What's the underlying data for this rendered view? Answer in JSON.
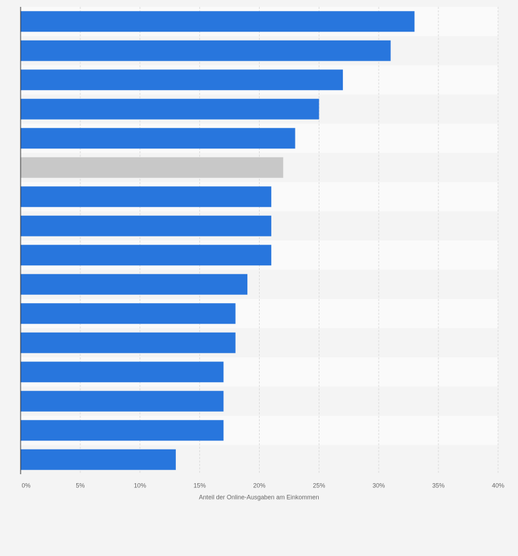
{
  "chart_data": {
    "type": "hbar",
    "categories": [
      null,
      null,
      null,
      null,
      null,
      null,
      null,
      null,
      null,
      null,
      null,
      null,
      null,
      null,
      null,
      null
    ],
    "values": [
      33,
      31,
      27,
      25,
      23,
      22,
      21,
      21,
      21,
      19,
      18,
      18,
      17,
      17,
      17,
      13
    ],
    "colors": [
      "#2876dd",
      "#2876dd",
      "#2876dd",
      "#2876dd",
      "#2876dd",
      "#c8c8c8",
      "#2876dd",
      "#2876dd",
      "#2876dd",
      "#2876dd",
      "#2876dd",
      "#2876dd",
      "#2876dd",
      "#2876dd",
      "#2876dd",
      "#2876dd"
    ],
    "xlabel": "Anteil der Online-Ausgaben am Einkommen",
    "xlim": [
      0,
      40
    ],
    "xticks": [
      {
        "value": 0,
        "label": "0%"
      },
      {
        "value": 5,
        "label": "5%"
      },
      {
        "value": 10,
        "label": "10%"
      },
      {
        "value": 15,
        "label": "15%"
      },
      {
        "value": 20,
        "label": "20%"
      },
      {
        "value": 25,
        "label": "25%"
      },
      {
        "value": 30,
        "label": "30%"
      },
      {
        "value": 35,
        "label": "35%"
      },
      {
        "value": 40,
        "label": "40%"
      }
    ],
    "grid": true
  }
}
